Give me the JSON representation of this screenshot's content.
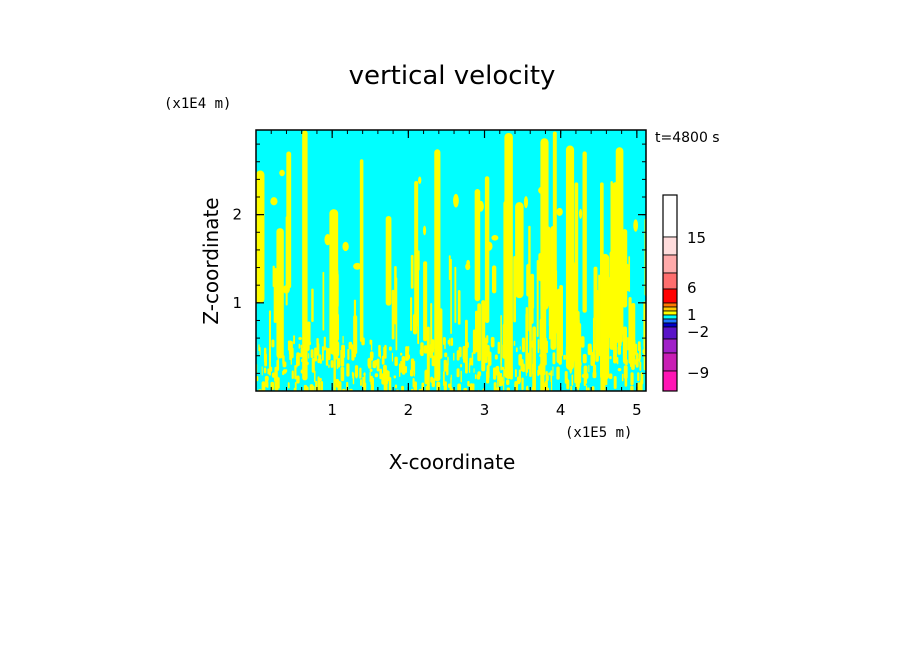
{
  "chart_data": {
    "type": "heatmap",
    "title": "vertical velocity",
    "xlabel": "X-coordinate",
    "ylabel": "Z-coordinate",
    "x_unit": "(x1E5 m)",
    "y_unit": "(x1E4 m)",
    "time_label": "t=4800 s",
    "xlim": [
      0,
      5.12
    ],
    "ylim": [
      0,
      2.96
    ],
    "x_ticks": [
      "1",
      "2",
      "3",
      "4",
      "5"
    ],
    "y_ticks": [
      "1",
      "2"
    ],
    "field_colors": {
      "updraft": "#ffff00",
      "downdraft": "#00ffff"
    },
    "colorbar": {
      "levels": [
        -12,
        -9,
        -6,
        -4,
        -2,
        -1,
        0,
        1,
        2,
        4,
        6,
        10,
        15,
        20,
        25
      ],
      "colors": [
        "#ff14b4",
        "#c81eb4",
        "#a020c8",
        "#5a14c8",
        "#0000c8",
        "#1e78ff",
        "#00ffff",
        "#ffff00",
        "#ffc800",
        "#ff7800",
        "#ff0000",
        "#ff6e6e",
        "#ffaaaa",
        "#ffdcdc",
        "#ffffff"
      ],
      "labels": [
        "15",
        "6",
        "1",
        "−2",
        "−9"
      ]
    }
  }
}
